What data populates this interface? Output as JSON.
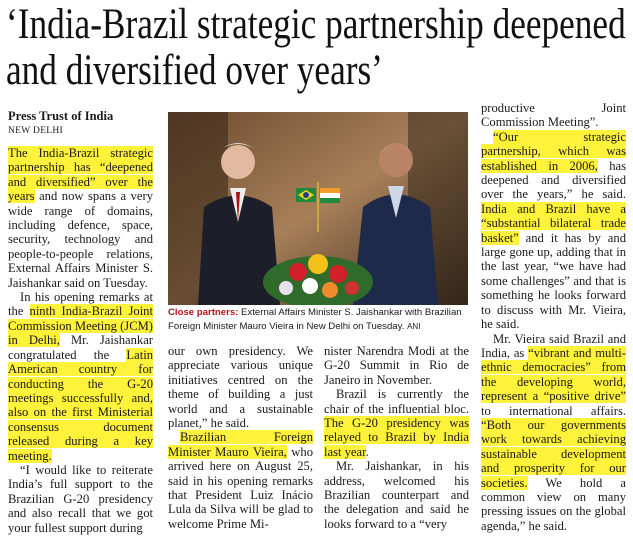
{
  "headline": "‘India-Brazil strategic partnership deepened and diversified over years’",
  "byline": {
    "agency": "Press Trust of India",
    "dateline": "NEW DELHI"
  },
  "photo_caption": {
    "lead": "Close partners:",
    "text": "External Affairs Minister S. Jaishankar with Brazilian Foreign Minister Mauro Vieira in New Delhi on Tuesday.",
    "credit": "ANI"
  },
  "columns": [
    {
      "paragraphs": [
        {
          "indent": false,
          "segments": [
            {
              "text": "The India-Brazil strategic partnership has “deepened and diversified” over the years",
              "highlight": true
            },
            {
              "text": " and now spans a very wide range of domains, including defence, space, security, technology and people-to-people relations, External Affairs Minister S. Jaishankar said on Tuesday.",
              "highlight": false
            }
          ]
        },
        {
          "indent": true,
          "segments": [
            {
              "text": "In his opening remarks at the ",
              "highlight": false
            },
            {
              "text": "ninth India-Brazil Joint Commission Meeting (JCM) in Delhi,",
              "highlight": true
            },
            {
              "text": " Mr. Jaishankar congratulated the ",
              "highlight": false
            },
            {
              "text": "Latin American country for conducting the G-20 meetings successfully and, also on the first Ministerial consensus document released during a key meeting.",
              "highlight": true
            }
          ]
        },
        {
          "indent": true,
          "segments": [
            {
              "text": "“I would like to reiterate India’s full support to the Brazilian G-20 presidency and also recall that we got your fullest support during",
              "highlight": false
            }
          ]
        }
      ]
    },
    {
      "paragraphs": [
        {
          "indent": false,
          "segments": [
            {
              "text": "our own presidency. We appreciate various unique initiatives centred on the theme of building a just world and a sustainable planet,” he said.",
              "highlight": false
            }
          ]
        },
        {
          "indent": true,
          "segments": [
            {
              "text": "Brazilian Foreign Minister Mauro Vieira,",
              "highlight": true
            },
            {
              "text": " who arrived here on August 25, said in his opening remarks that President Luiz Inácio Lula da Silva will be glad to welcome Prime Mi-",
              "highlight": false
            }
          ]
        }
      ]
    },
    {
      "paragraphs": [
        {
          "indent": false,
          "segments": [
            {
              "text": "nister Narendra Modi at the G-20 Summit in Rio de Janeiro in November.",
              "highlight": false
            }
          ]
        },
        {
          "indent": true,
          "segments": [
            {
              "text": "Brazil is currently the chair of the influential bloc. ",
              "highlight": false
            },
            {
              "text": "The G-20 presidency was relayed to Brazil by India last year",
              "highlight": true
            },
            {
              "text": ".",
              "highlight": false
            }
          ]
        },
        {
          "indent": true,
          "segments": [
            {
              "text": "Mr. Jaishankar, in his address, welcomed his Brazilian counterpart and the delegation and said he looks forward to a “very",
              "highlight": false
            }
          ]
        }
      ]
    },
    {
      "paragraphs": [
        {
          "indent": false,
          "segments": [
            {
              "text": "productive Joint Commission Meeting”.",
              "highlight": false
            }
          ]
        },
        {
          "indent": true,
          "segments": [
            {
              "text": "“Our strategic partnership, which was established in 2006,",
              "highlight": true
            },
            {
              "text": " has deepened and diversified over the years,” he said. ",
              "highlight": false
            },
            {
              "text": "India and Brazil have a “substantial bilateral trade basket”",
              "highlight": true
            },
            {
              "text": " and it has by and large gone up, adding that in the last year, “we have had some challenges” and that is something he looks forward to discuss with Mr. Vieira, he said.",
              "highlight": false
            }
          ]
        },
        {
          "indent": true,
          "segments": [
            {
              "text": "Mr. Vieira said Brazil and India, as ",
              "highlight": false
            },
            {
              "text": "“vibrant and multi-ethnic democracies” from the developing world, represent a “positive drive”",
              "highlight": true
            },
            {
              "text": " to international affairs. ",
              "highlight": false
            },
            {
              "text": "“Both our governments work towards achieving sustainable development and prosperity for our societies.",
              "highlight": true
            },
            {
              "text": " We hold a common view on many pressing issues on the global agenda,” he said.",
              "highlight": false
            }
          ]
        }
      ]
    }
  ]
}
